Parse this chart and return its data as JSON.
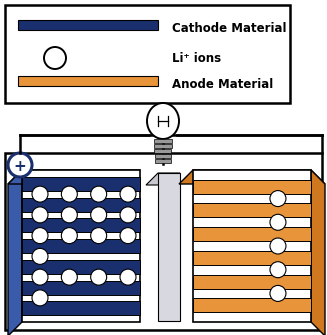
{
  "cathode_color": "#1a2f6e",
  "cathode_color_3d": "#2a4a9a",
  "anode_color": "#e8943a",
  "anode_color_3d": "#c97030",
  "separator_color": "#d8d8e0",
  "separator_3d": "#b8b8c8",
  "background": "#ffffff",
  "wire_color": "#000000",
  "plus_color": "#1a2f6e",
  "legend_cathode_label": "Cathode Material",
  "legend_ion_label": "Li⁺ ions",
  "legend_anode_label": "Anode Material",
  "cathode_n_bars": 7,
  "anode_n_bars": 6,
  "ion_rows_cathode": [
    4,
    4,
    4,
    1,
    4,
    1
  ],
  "ion_rows_anode": [
    1,
    1,
    1,
    1,
    1
  ]
}
